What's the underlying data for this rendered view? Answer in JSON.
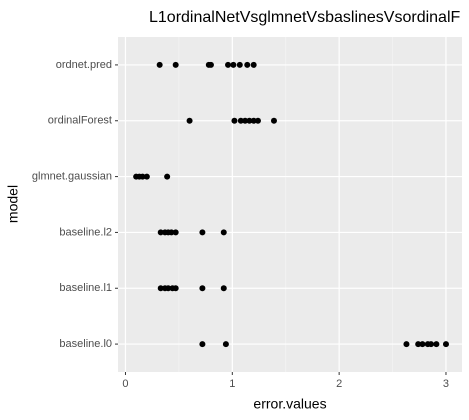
{
  "chart_data": {
    "type": "scatter",
    "title": "L1ordinalNetVsglmnetVsbaslinesVsordinalF",
    "x_label": "error.values",
    "y_label": "model",
    "categories": [
      "ordnet.pred",
      "ordinalForest",
      "glmnet.gaussian",
      "baseline.l2",
      "baseline.l1",
      "baseline.l0"
    ],
    "values": [
      [
        0.32,
        0.47,
        0.78,
        0.8,
        0.96,
        1.01,
        1.07,
        1.14,
        1.2
      ],
      [
        0.6,
        1.02,
        1.08,
        1.12,
        1.16,
        1.2,
        1.24,
        1.39
      ],
      [
        0.1,
        0.13,
        0.16,
        0.2,
        0.39
      ],
      [
        0.33,
        0.37,
        0.4,
        0.43,
        0.47,
        0.72,
        0.92
      ],
      [
        0.33,
        0.37,
        0.4,
        0.44,
        0.47,
        0.72,
        0.92
      ],
      [
        0.72,
        0.94,
        2.63,
        2.74,
        2.78,
        2.83,
        2.86,
        2.91,
        3.0
      ]
    ],
    "color": "#000000",
    "xlim": [
      -0.07,
      3.15
    ],
    "xticks": [
      0,
      1,
      2,
      3
    ],
    "xminor": [
      0.5,
      1.5,
      2.5
    ],
    "grid": true
  }
}
